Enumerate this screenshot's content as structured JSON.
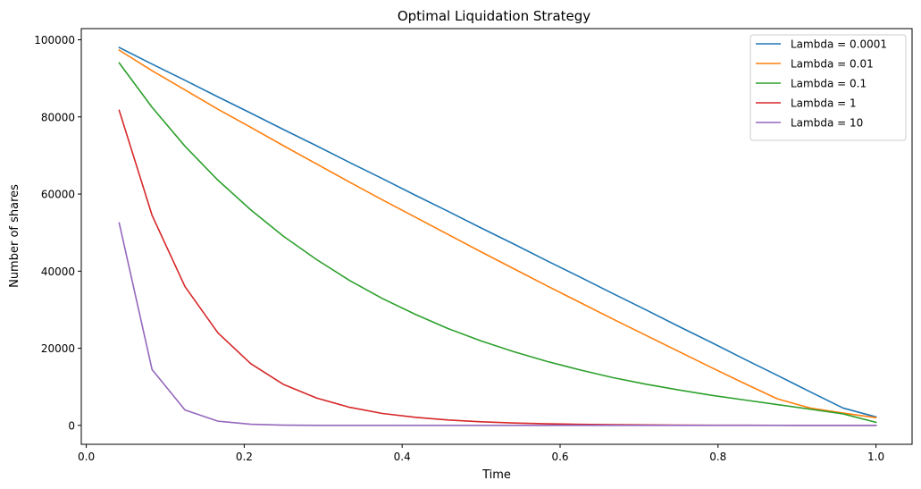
{
  "chart_data": {
    "type": "line",
    "title": "Optimal Liquidation Strategy",
    "xlabel": "Time",
    "ylabel": "Number of shares",
    "xlim": [
      -0.0063,
      1.0457
    ],
    "ylim": [
      -4900,
      102900
    ],
    "xticks": [
      0.0,
      0.2,
      0.4,
      0.6,
      0.8,
      1.0
    ],
    "xtick_labels": [
      "0.0",
      "0.2",
      "0.4",
      "0.6",
      "0.8",
      "1.0"
    ],
    "yticks": [
      0,
      20000,
      40000,
      60000,
      80000,
      100000
    ],
    "ytick_labels": [
      "0",
      "20000",
      "40000",
      "60000",
      "80000",
      "100000"
    ],
    "grid": false,
    "legend_position": "top-right",
    "x": [
      0.0417,
      0.0833,
      0.125,
      0.1667,
      0.2083,
      0.25,
      0.2917,
      0.3333,
      0.375,
      0.4167,
      0.4583,
      0.5,
      0.5417,
      0.5833,
      0.625,
      0.6667,
      0.7083,
      0.75,
      0.7917,
      0.8333,
      0.875,
      0.9167,
      0.9583,
      1.0
    ],
    "series": [
      {
        "name": "Lambda = 0.0001",
        "color": "#1f77b4",
        "values": [
          98000,
          93700,
          89500,
          85200,
          81000,
          76700,
          72500,
          68200,
          64000,
          59700,
          55500,
          51200,
          47000,
          42700,
          38500,
          34200,
          30000,
          25700,
          21500,
          17200,
          13000,
          8700,
          4500,
          2200
        ]
      },
      {
        "name": "Lambda = 0.01",
        "color": "#ff7f0e",
        "values": [
          97300,
          92000,
          87000,
          82000,
          77300,
          72500,
          67800,
          63100,
          58500,
          54000,
          49500,
          45000,
          40600,
          36200,
          31900,
          27600,
          23400,
          19200,
          15000,
          10900,
          6900,
          4500,
          3200,
          2000
        ]
      },
      {
        "name": "Lambda = 0.1",
        "color": "#2ca02c",
        "values": [
          94000,
          82500,
          72400,
          63600,
          55900,
          49000,
          43000,
          37600,
          32900,
          28800,
          25100,
          21900,
          19100,
          16600,
          14400,
          12400,
          10700,
          9200,
          7800,
          6600,
          5400,
          4200,
          3000,
          800
        ]
      },
      {
        "name": "Lambda = 1",
        "color": "#d62728",
        "values": [
          81700,
          54500,
          36000,
          24000,
          16000,
          10600,
          7100,
          4700,
          3100,
          2100,
          1400,
          930,
          620,
          410,
          270,
          180,
          120,
          80,
          50,
          35,
          25,
          15,
          10,
          5
        ]
      },
      {
        "name": "Lambda = 10",
        "color": "#9467bd",
        "values": [
          52500,
          14500,
          4000,
          1100,
          300,
          80,
          20,
          5,
          1,
          0,
          0,
          0,
          0,
          0,
          0,
          0,
          0,
          0,
          0,
          0,
          0,
          0,
          0,
          0
        ]
      }
    ]
  }
}
